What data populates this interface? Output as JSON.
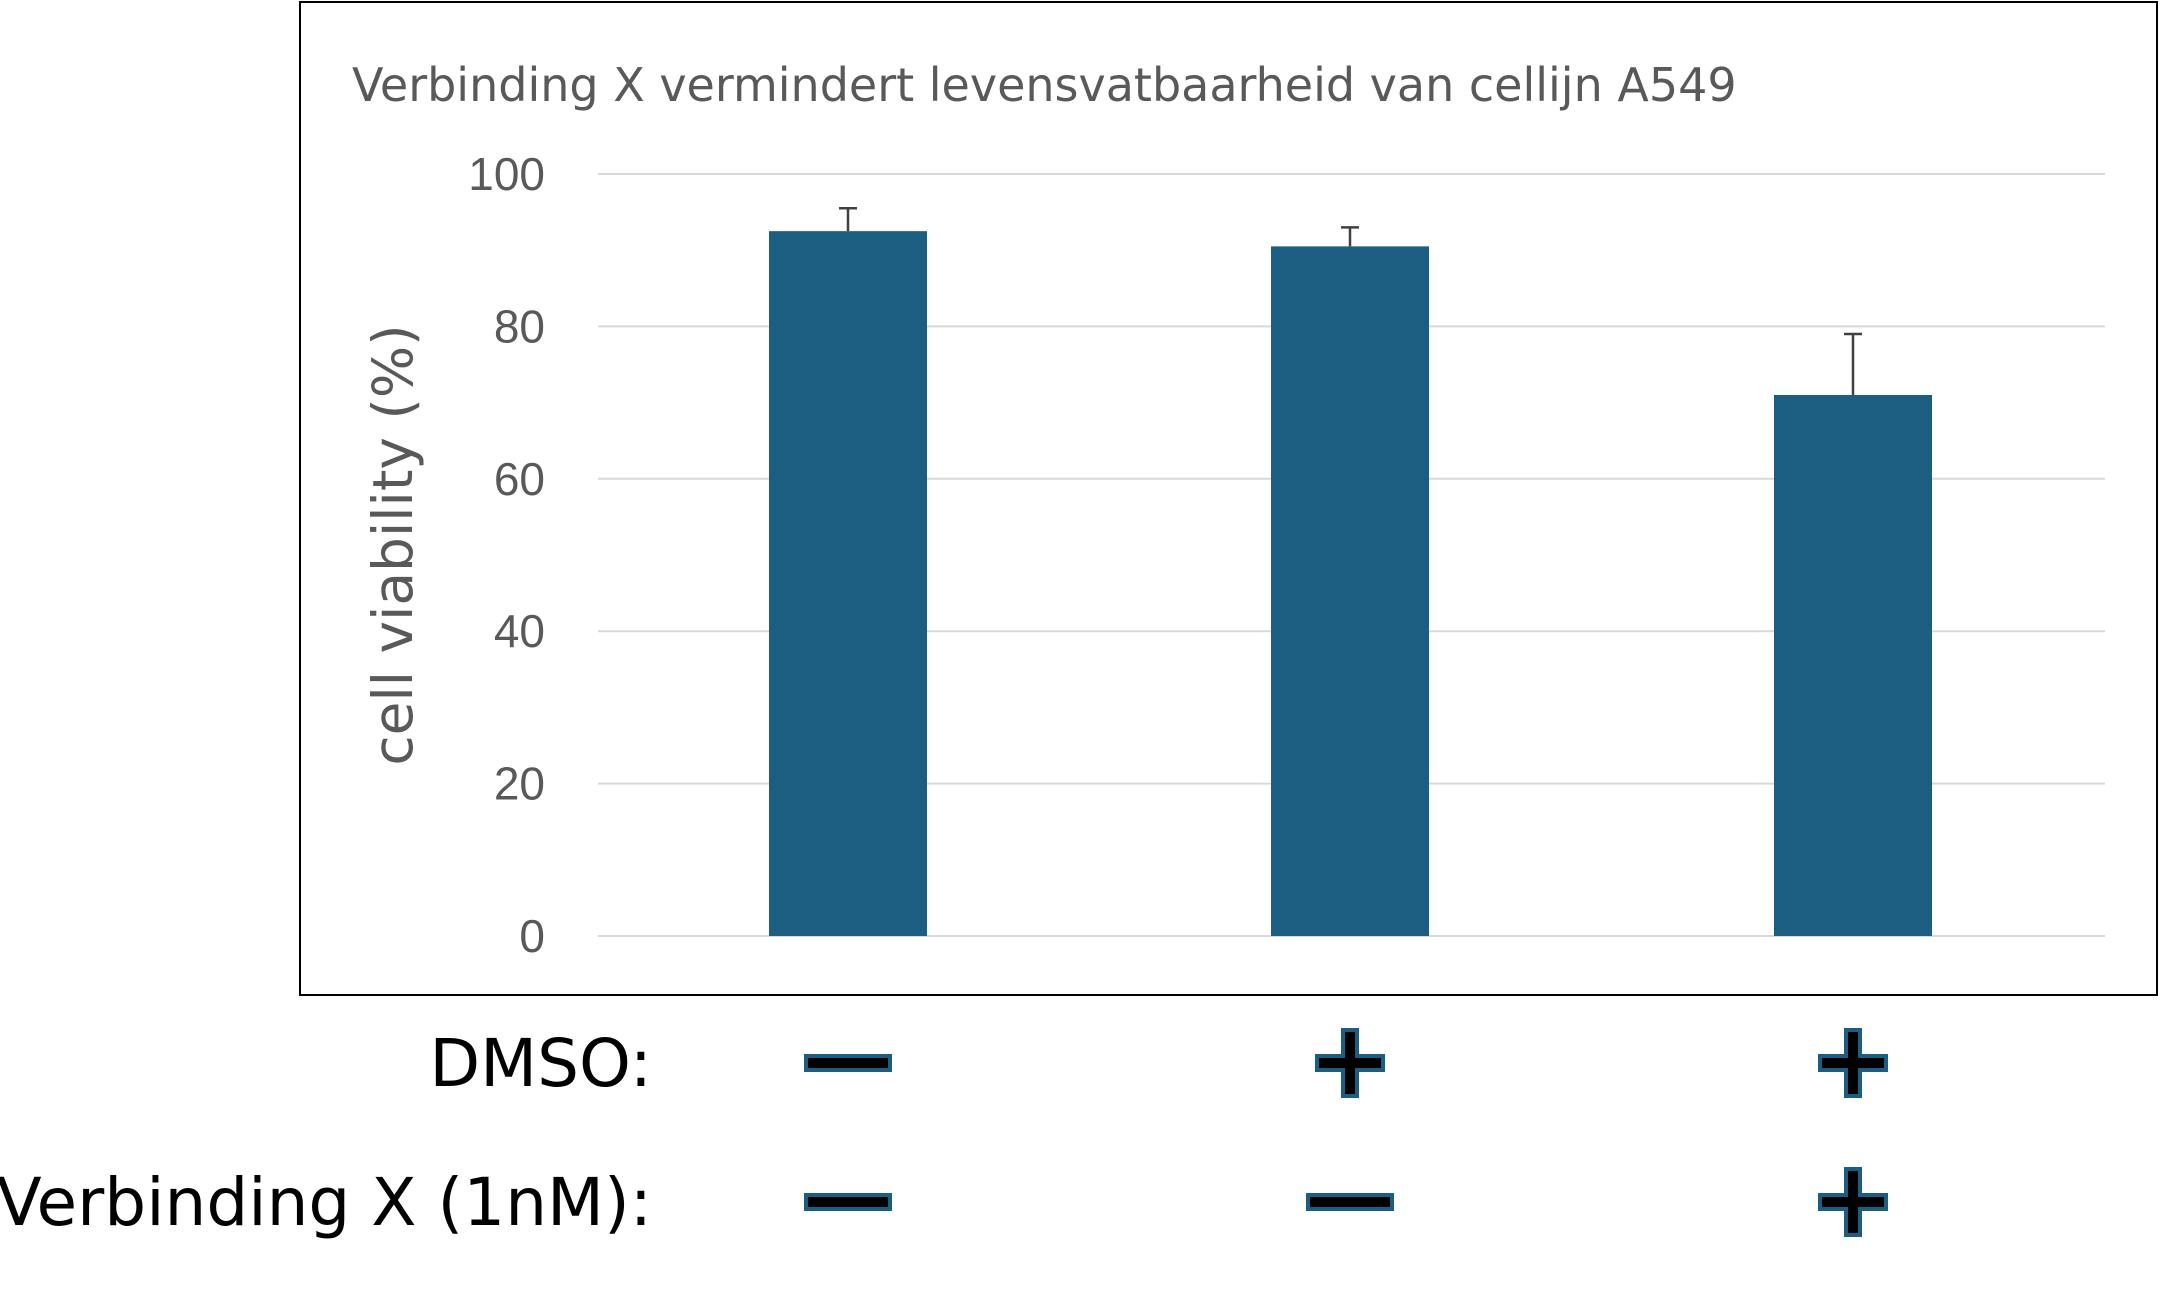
{
  "chart_data": {
    "type": "bar",
    "title": "Verbinding  X vermindert levensvatbaarheid  van cellijn A549",
    "xlabel": "",
    "ylabel": "cell viability (%)",
    "ylim": [
      0,
      100
    ],
    "yticks": [
      "0",
      "20",
      "40",
      "60",
      "80",
      "100"
    ],
    "categories": [
      "",
      "",
      ""
    ],
    "series": [
      {
        "values": [
          92.5,
          90.5,
          71
        ],
        "errors": [
          3,
          2.5,
          8
        ],
        "color": "#1b5e82"
      }
    ],
    "grid": true,
    "legend": "none"
  },
  "treatment_table": {
    "rows": [
      {
        "label": "DMSO:",
        "signs": [
          "−",
          "+",
          "+"
        ]
      },
      {
        "label": "Verbinding X (1nM):",
        "signs": [
          "−",
          "−",
          "+"
        ]
      }
    ],
    "sign_color": "#000000",
    "sign_outline_color": "#1b5e82"
  }
}
